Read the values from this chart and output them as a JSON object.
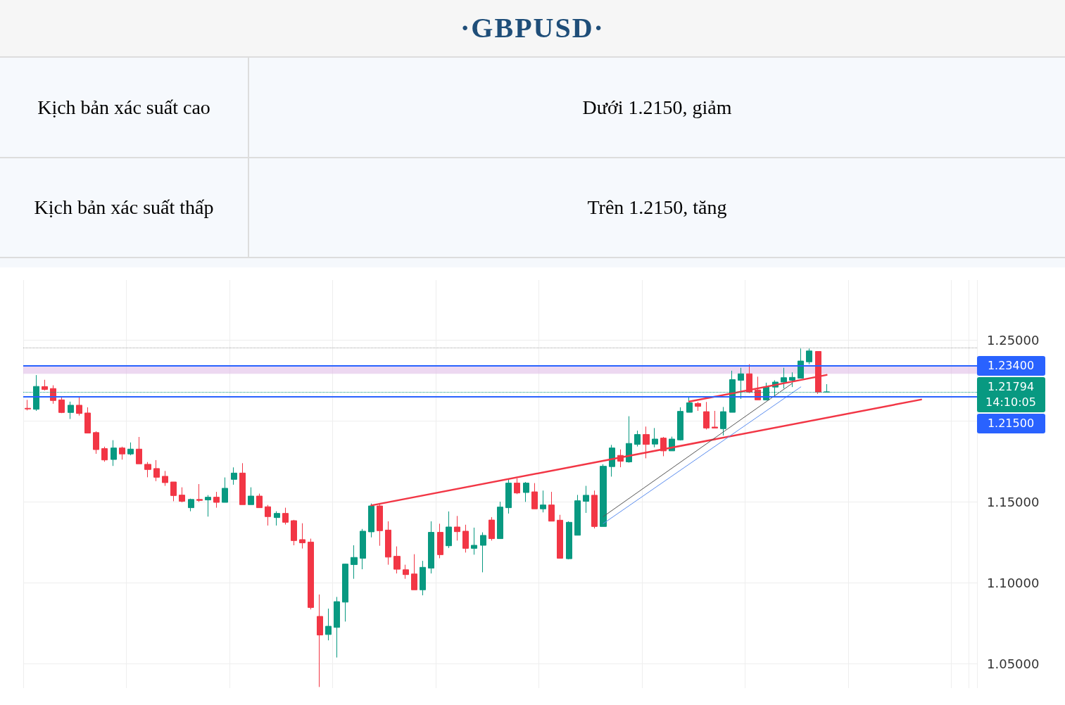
{
  "chart_data": {
    "type": "candlestick",
    "title": "·GBPUSD·",
    "annotations": [
      "Kịch bản xác suất cao",
      "Dưới 1.2150, giảm",
      "Kịch bản xác suất thấp",
      "Trên 1.2150, tăng"
    ],
    "categories": [
      null,
      null,
      null,
      null,
      null,
      null,
      null,
      null,
      null,
      null,
      null,
      null,
      null,
      null,
      null,
      null,
      null,
      null,
      null,
      null,
      null,
      null,
      null,
      null,
      null,
      null,
      null,
      null,
      null,
      null,
      null,
      null,
      null,
      null,
      null,
      null,
      null,
      null,
      null,
      null,
      null,
      null,
      null,
      null,
      null,
      null,
      null,
      null,
      null,
      null,
      null,
      null,
      null,
      null,
      null,
      null,
      null,
      null,
      null,
      null,
      null,
      null,
      null,
      null,
      null,
      null,
      null,
      null,
      null,
      null,
      null,
      null,
      null,
      null,
      null,
      null,
      null,
      null,
      null,
      null,
      null,
      null,
      null,
      null,
      null,
      null,
      null,
      null,
      null,
      null,
      null,
      null,
      null,
      null,
      null,
      null,
      null,
      null,
      null,
      null,
      null,
      null,
      null,
      null,
      null,
      null,
      null,
      null,
      null,
      null,
      null
    ],
    "colors": [
      "#f23645",
      "#089981",
      "#f23645",
      "#f23645",
      "#f23645",
      "#089981",
      "#f23645",
      "#f23645",
      "#f23645",
      "#f23645",
      "#089981",
      "#f23645",
      "#089981",
      "#f23645",
      "#f23645",
      "#f23645",
      "#f23645",
      "#f23645",
      "#f23645",
      "#089981",
      "#f23645",
      "#089981",
      "#f23645",
      "#089981",
      "#089981",
      "#f23645",
      "#089981",
      "#f23645",
      "#f23645",
      "#089981",
      "#f23645",
      "#f23645",
      "#f23645",
      "#f23645",
      "#f23645",
      "#089981",
      "#089981",
      "#089981",
      "#089981",
      "#089981",
      "#089981",
      "#f23645",
      "#f23645",
      "#f23645",
      "#f23645",
      "#f23645",
      "#089981",
      "#089981",
      "#f23645",
      "#089981",
      "#f23645",
      "#f23645",
      "#089981",
      "#089981",
      "#f23645",
      "#089981",
      "#089981",
      "#f23645",
      "#089981",
      "#f23645",
      "#089981",
      "#f23645",
      "#f23645",
      "#089981",
      "#089981",
      "#089981",
      "#f23645",
      "#089981",
      "#089981",
      "#f23645",
      "#089981",
      "#089981",
      "#f23645",
      "#089981",
      "#f23645",
      "#089981",
      "#089981",
      "#089981",
      "#f23645",
      "#f23645",
      "#f23645",
      "#089981",
      "#089981",
      "#089981",
      "#f23645",
      "#f23645",
      "#089981",
      "#089981",
      "#089981",
      "#089981",
      "#089981",
      "#089981",
      "#f23645",
      "#089981",
      null,
      null,
      null,
      null,
      null,
      null,
      null,
      null,
      null,
      null,
      null,
      null,
      null,
      null,
      null,
      null,
      null
    ],
    "ohlc": [
      [
        1.2078,
        1.213,
        1.2065,
        1.2074
      ],
      [
        1.2072,
        1.2283,
        1.2062,
        1.2213
      ],
      [
        1.2212,
        1.2254,
        1.2188,
        1.2194
      ],
      [
        1.22,
        1.222,
        1.2106,
        1.2126
      ],
      [
        1.213,
        1.2152,
        1.2048,
        1.2052
      ],
      [
        1.2052,
        1.2119,
        1.2012,
        1.2097
      ],
      [
        1.2097,
        1.2145,
        1.2033,
        1.2046
      ],
      [
        1.2049,
        1.2084,
        1.1925,
        1.1925
      ],
      [
        1.1928,
        1.1936,
        1.1797,
        1.1823
      ],
      [
        1.1829,
        1.1841,
        1.1748,
        1.1759
      ],
      [
        1.1762,
        1.1881,
        1.1722,
        1.1833
      ],
      [
        1.1833,
        1.1841,
        1.1761,
        1.1796
      ],
      [
        1.1796,
        1.1867,
        1.1788,
        1.1826
      ],
      [
        1.1826,
        1.1901,
        1.1735,
        1.1735
      ],
      [
        1.1732,
        1.1746,
        1.1652,
        1.17
      ],
      [
        1.1706,
        1.1758,
        1.1628,
        1.1652
      ],
      [
        1.1658,
        1.1691,
        1.1599,
        1.1619
      ],
      [
        1.1623,
        1.1623,
        1.1504,
        1.1539
      ],
      [
        1.1542,
        1.159,
        1.1497,
        1.1504
      ],
      [
        1.1464,
        1.152,
        1.1442,
        1.1515
      ],
      [
        1.1515,
        1.161,
        1.15,
        1.1509
      ],
      [
        1.1512,
        1.1542,
        1.1409,
        1.1529
      ],
      [
        1.1529,
        1.1562,
        1.1464,
        1.1497
      ],
      [
        1.1497,
        1.1651,
        1.1497,
        1.1584
      ],
      [
        1.1639,
        1.1713,
        1.1606,
        1.1678
      ],
      [
        1.1678,
        1.1739,
        1.1483,
        1.1483
      ],
      [
        1.1483,
        1.159,
        1.1483,
        1.1536
      ],
      [
        1.1536,
        1.1551,
        1.1464,
        1.1464
      ],
      [
        1.147,
        1.1481,
        1.1354,
        1.1409
      ],
      [
        1.1403,
        1.1442,
        1.1354,
        1.1429
      ],
      [
        1.1429,
        1.1464,
        1.136,
        1.1374
      ],
      [
        1.1384,
        1.1389,
        1.1232,
        1.1261
      ],
      [
        1.1267,
        1.1368,
        1.1212,
        1.1247
      ],
      [
        1.1252,
        1.1273,
        1.0836,
        1.0848
      ],
      [
        1.0793,
        1.0928,
        1.0357,
        1.0678
      ],
      [
        1.0681,
        1.0841,
        1.0645,
        1.0732
      ],
      [
        1.0725,
        1.0913,
        1.0539,
        1.0884
      ],
      [
        1.0881,
        1.1119,
        1.0761,
        1.1116
      ],
      [
        1.1113,
        1.1232,
        1.1025,
        1.1157
      ],
      [
        1.1152,
        1.1333,
        1.1084,
        1.1319
      ],
      [
        1.1315,
        1.149,
        1.1281,
        1.1475
      ],
      [
        1.1475,
        1.1493,
        1.1229,
        1.1322
      ],
      [
        1.1326,
        1.138,
        1.1112,
        1.1159
      ],
      [
        1.1164,
        1.1225,
        1.1058,
        1.1084
      ],
      [
        1.1081,
        1.1112,
        1.1025,
        1.1051
      ],
      [
        1.1055,
        1.1177,
        1.0957,
        1.0957
      ],
      [
        1.0957,
        1.1136,
        1.0923,
        1.1096
      ],
      [
        1.1091,
        1.138,
        1.1058,
        1.1312
      ],
      [
        1.1312,
        1.1365,
        1.1152,
        1.1174
      ],
      [
        1.1229,
        1.1441,
        1.1215,
        1.1345
      ],
      [
        1.1345,
        1.1413,
        1.1261,
        1.1316
      ],
      [
        1.1319,
        1.1359,
        1.1187,
        1.1213
      ],
      [
        1.1213,
        1.1341,
        1.1174,
        1.1232
      ],
      [
        1.1232,
        1.1312,
        1.1065,
        1.1293
      ],
      [
        1.1388,
        1.1406,
        1.1261,
        1.1273
      ],
      [
        1.1273,
        1.1501,
        1.1273,
        1.1468
      ],
      [
        1.1464,
        1.1638,
        1.1428,
        1.1616
      ],
      [
        1.1616,
        1.1645,
        1.1548,
        1.1555
      ],
      [
        1.1558,
        1.1623,
        1.15,
        1.1616
      ],
      [
        1.1562,
        1.1616,
        1.1457,
        1.1457
      ],
      [
        1.1457,
        1.157,
        1.1435,
        1.1481
      ],
      [
        1.1481,
        1.1562,
        1.1381,
        1.1381
      ],
      [
        1.1387,
        1.142,
        1.1152,
        1.1152
      ],
      [
        1.1149,
        1.138,
        1.1145,
        1.1374
      ],
      [
        1.1294,
        1.1543,
        1.1294,
        1.1507
      ],
      [
        1.1504,
        1.1599,
        1.1432,
        1.1541
      ],
      [
        1.1541,
        1.157,
        1.1336,
        1.1348
      ],
      [
        1.1348,
        1.1732,
        1.1348,
        1.172
      ],
      [
        1.1718,
        1.1852,
        1.1656,
        1.1833
      ],
      [
        1.1787,
        1.1824,
        1.1714,
        1.1751
      ],
      [
        1.1747,
        1.2029,
        1.1742,
        1.1861
      ],
      [
        1.1855,
        1.194,
        1.1842,
        1.1916
      ],
      [
        1.1916,
        1.1965,
        1.1769,
        1.1855
      ],
      [
        1.1857,
        1.1956,
        1.1837,
        1.1888
      ],
      [
        1.1894,
        1.1901,
        1.1782,
        1.1815
      ],
      [
        1.1815,
        1.1903,
        1.1815,
        1.1888
      ],
      [
        1.1883,
        1.2084,
        1.1879,
        1.2059
      ],
      [
        1.2053,
        1.2148,
        1.2053,
        1.2112
      ],
      [
        1.2108,
        1.2117,
        1.2062,
        1.209
      ],
      [
        1.2057,
        1.2117,
        1.1947,
        1.1956
      ],
      [
        1.1962,
        1.2062,
        1.1956,
        1.1956
      ],
      [
        1.1952,
        1.2086,
        1.191,
        1.2057
      ],
      [
        1.2053,
        1.231,
        1.2053,
        1.2255
      ],
      [
        1.2251,
        1.2328,
        1.2136,
        1.2291
      ],
      [
        1.2291,
        1.235,
        1.2172,
        1.2178
      ],
      [
        1.2191,
        1.2273,
        1.213,
        1.213
      ],
      [
        1.213,
        1.2236,
        1.2126,
        1.2209
      ],
      [
        1.2209,
        1.2251,
        1.2154,
        1.224
      ],
      [
        1.224,
        1.2328,
        1.22,
        1.2267
      ],
      [
        1.2251,
        1.23,
        1.2209,
        1.2269
      ],
      [
        1.2264,
        1.2447,
        1.2264,
        1.237
      ],
      [
        1.2365,
        1.2447,
        1.235,
        1.2432
      ],
      [
        1.2429,
        1.2429,
        1.2167,
        1.2178
      ],
      [
        1.2178,
        1.2227,
        1.2178,
        1.21794
      ],
      null,
      null,
      null,
      null,
      null,
      null,
      null,
      null,
      null,
      null,
      null,
      null,
      null,
      null,
      null,
      null,
      null
    ],
    "series": [
      {
        "type": "line",
        "color": "#f23645",
        "values": [
          null,
          null,
          null,
          null,
          null,
          null,
          null,
          null,
          null,
          null,
          null,
          null,
          null,
          null,
          null,
          null,
          null,
          null,
          null,
          null,
          null,
          null,
          null,
          null,
          null,
          null,
          null,
          null,
          null,
          null,
          null,
          null,
          null,
          null,
          null,
          null,
          null,
          null,
          null,
          null,
          1.1478,
          null,
          null,
          null,
          null,
          null,
          null,
          null,
          null,
          null,
          null,
          null,
          null,
          null,
          null,
          null,
          null,
          null,
          null,
          null,
          null,
          null,
          null,
          null,
          null,
          null,
          null,
          null,
          null,
          null,
          null,
          null,
          null,
          null,
          null,
          null,
          null,
          null,
          null,
          null,
          null,
          null,
          null,
          null,
          null,
          null,
          null,
          null,
          null,
          null,
          null,
          null,
          null,
          null,
          null,
          null,
          null,
          null,
          null,
          null,
          null,
          null,
          null,
          null,
          1.2132,
          null,
          null,
          null,
          null,
          null,
          null
        ]
      },
      {
        "type": "line",
        "color": "#f23645",
        "values": [
          null,
          null,
          null,
          null,
          null,
          null,
          null,
          null,
          null,
          null,
          null,
          null,
          null,
          null,
          null,
          null,
          null,
          null,
          null,
          null,
          null,
          null,
          null,
          null,
          null,
          null,
          null,
          null,
          null,
          null,
          null,
          null,
          null,
          null,
          null,
          null,
          null,
          null,
          null,
          null,
          null,
          null,
          null,
          null,
          null,
          null,
          null,
          null,
          null,
          null,
          null,
          null,
          null,
          null,
          null,
          null,
          null,
          null,
          null,
          null,
          null,
          null,
          null,
          null,
          null,
          null,
          null,
          null,
          null,
          null,
          null,
          null,
          null,
          null,
          null,
          null,
          null,
          1.2119,
          null,
          null,
          null,
          null,
          null,
          null,
          null,
          null,
          null,
          null,
          null,
          null,
          null,
          null,
          null,
          1.2284,
          null,
          null,
          null,
          null,
          null,
          null,
          null,
          null,
          null,
          null,
          null,
          null,
          null,
          null,
          null,
          null,
          null
        ]
      },
      {
        "type": "line",
        "color": "#555555",
        "values": [
          null,
          null,
          null,
          null,
          null,
          null,
          null,
          null,
          null,
          null,
          null,
          null,
          null,
          null,
          null,
          null,
          null,
          null,
          null,
          null,
          null,
          null,
          null,
          null,
          null,
          null,
          null,
          null,
          null,
          null,
          null,
          null,
          null,
          null,
          null,
          null,
          null,
          null,
          null,
          null,
          null,
          null,
          null,
          null,
          null,
          null,
          null,
          null,
          null,
          null,
          null,
          null,
          null,
          null,
          null,
          null,
          null,
          null,
          null,
          null,
          null,
          null,
          null,
          null,
          null,
          null,
          null,
          1.1409,
          null,
          null,
          null,
          null,
          null,
          null,
          null,
          null,
          null,
          null,
          null,
          null,
          null,
          null,
          null,
          null,
          null,
          null,
          null,
          null,
          null,
          1.2232,
          null,
          null,
          null,
          null,
          null,
          null,
          null,
          null,
          null,
          null,
          null,
          null,
          null,
          null,
          null,
          null,
          null,
          null,
          null,
          null,
          null
        ]
      },
      {
        "type": "line",
        "color": "#5b8def",
        "values": [
          null,
          null,
          null,
          null,
          null,
          null,
          null,
          null,
          null,
          null,
          null,
          null,
          null,
          null,
          null,
          null,
          null,
          null,
          null,
          null,
          null,
          null,
          null,
          null,
          null,
          null,
          null,
          null,
          null,
          null,
          null,
          null,
          null,
          null,
          null,
          null,
          null,
          null,
          null,
          null,
          null,
          null,
          null,
          null,
          null,
          null,
          null,
          null,
          null,
          null,
          null,
          null,
          null,
          null,
          null,
          null,
          null,
          null,
          null,
          null,
          null,
          null,
          null,
          null,
          null,
          null,
          null,
          1.1366,
          null,
          null,
          null,
          null,
          null,
          null,
          null,
          null,
          null,
          null,
          null,
          null,
          null,
          null,
          null,
          null,
          null,
          null,
          null,
          null,
          null,
          null,
          1.221,
          null,
          null,
          null,
          null,
          null,
          null,
          null,
          null,
          null,
          null,
          null,
          null,
          null,
          null,
          null,
          null,
          null,
          null,
          null,
          null
        ]
      }
    ],
    "ylim": [
      1.035,
      1.287
    ],
    "yticks": [
      {
        "value": 1.05,
        "label": "1.05000"
      },
      {
        "value": 1.1,
        "label": "1.10000"
      },
      {
        "value": 1.15,
        "label": "1.15000"
      },
      {
        "value": 1.2,
        "label": null
      },
      {
        "value": 1.25,
        "label": "1.25000"
      }
    ],
    "ref_lines": [
      {
        "axis": "y",
        "value": 1.2451,
        "color": "#9e9e9e",
        "line_style": "dotted"
      },
      {
        "axis": "y",
        "value": 1.234,
        "label": "1.23400",
        "color": "#2962ff"
      },
      {
        "axis": "y",
        "value": 1.21794,
        "label": "1.21794\n14:10:05",
        "color": "#089981",
        "line_style": "dotted"
      },
      {
        "axis": "y",
        "value": 1.215,
        "label": "1.21500",
        "color": "#2962ff"
      }
    ],
    "bands": [
      {
        "axis": "y",
        "from": 1.2291,
        "to": 1.234,
        "color": "#e1bee7"
      }
    ],
    "grid": true,
    "marker": "none",
    "line_style": "solid",
    "tick_labels": "y"
  }
}
